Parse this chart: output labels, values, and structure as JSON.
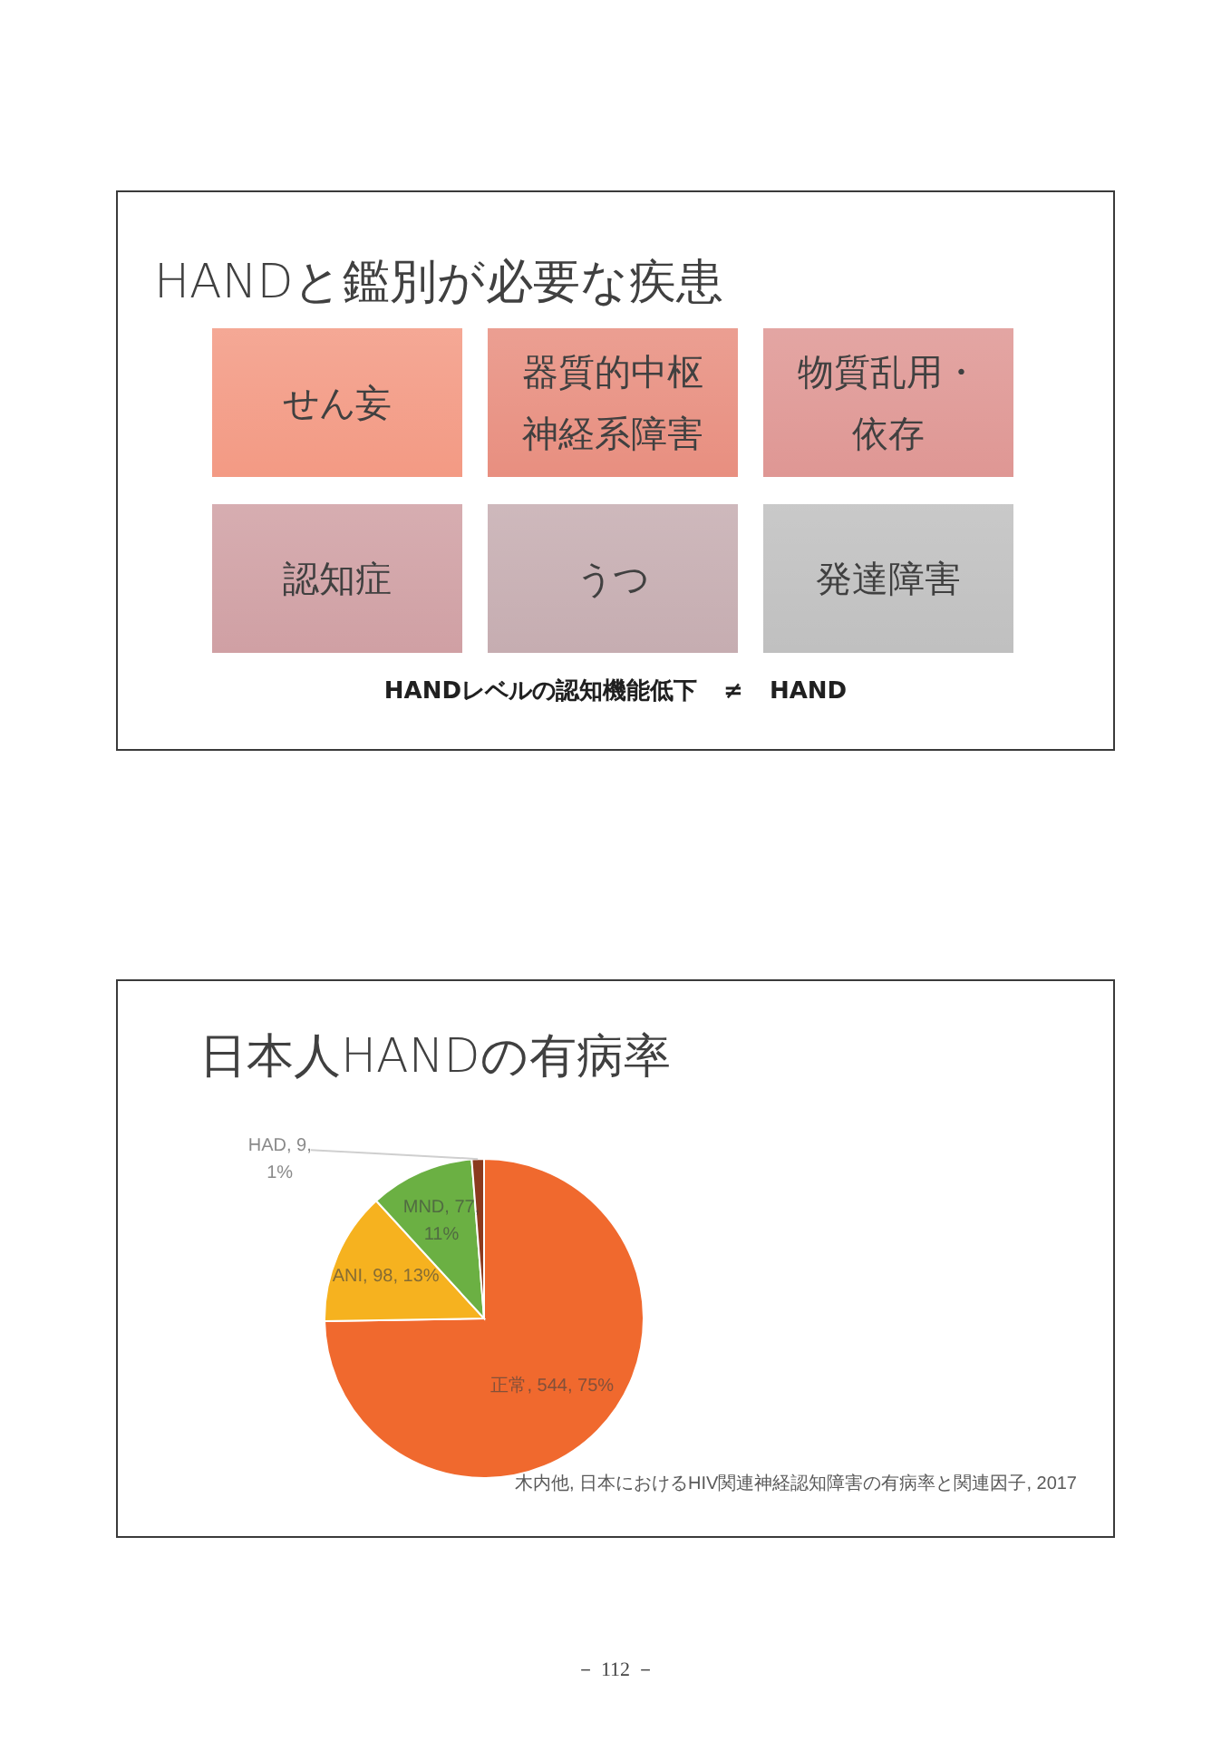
{
  "chart_data": [
    {
      "type": "other",
      "title": "HANDと鑑別が必要な疾患",
      "categories": [
        "せん妄",
        "器質的中枢神経系障害",
        "物質乱用・依存",
        "認知症",
        "うつ",
        "発達障害"
      ],
      "colors": [
        "#f39a84",
        "#e88f80",
        "#df9794",
        "#d0a0a4",
        "#c6adb1",
        "#c0c0c0"
      ],
      "annotations": [
        "HANDレベルの認知機能低下 ≠ HAND"
      ]
    },
    {
      "type": "pie",
      "title": "日本人HANDの有病率",
      "categories": [
        "正常",
        "ANI",
        "MND",
        "HAD"
      ],
      "values": [
        544,
        98,
        77,
        9
      ],
      "colors": [
        "#f0692e",
        "#f6b21f",
        "#6bb043",
        "#8b3a1e"
      ],
      "value_labels": [
        "544, 75%",
        "98, 13%",
        "77, 11%",
        "9, 1%"
      ],
      "annotations": [
        "木内他, 日本におけるHIV関連神経認知障害の有病率と関連因子, 2017",
        "－ 112 －"
      ]
    }
  ]
}
